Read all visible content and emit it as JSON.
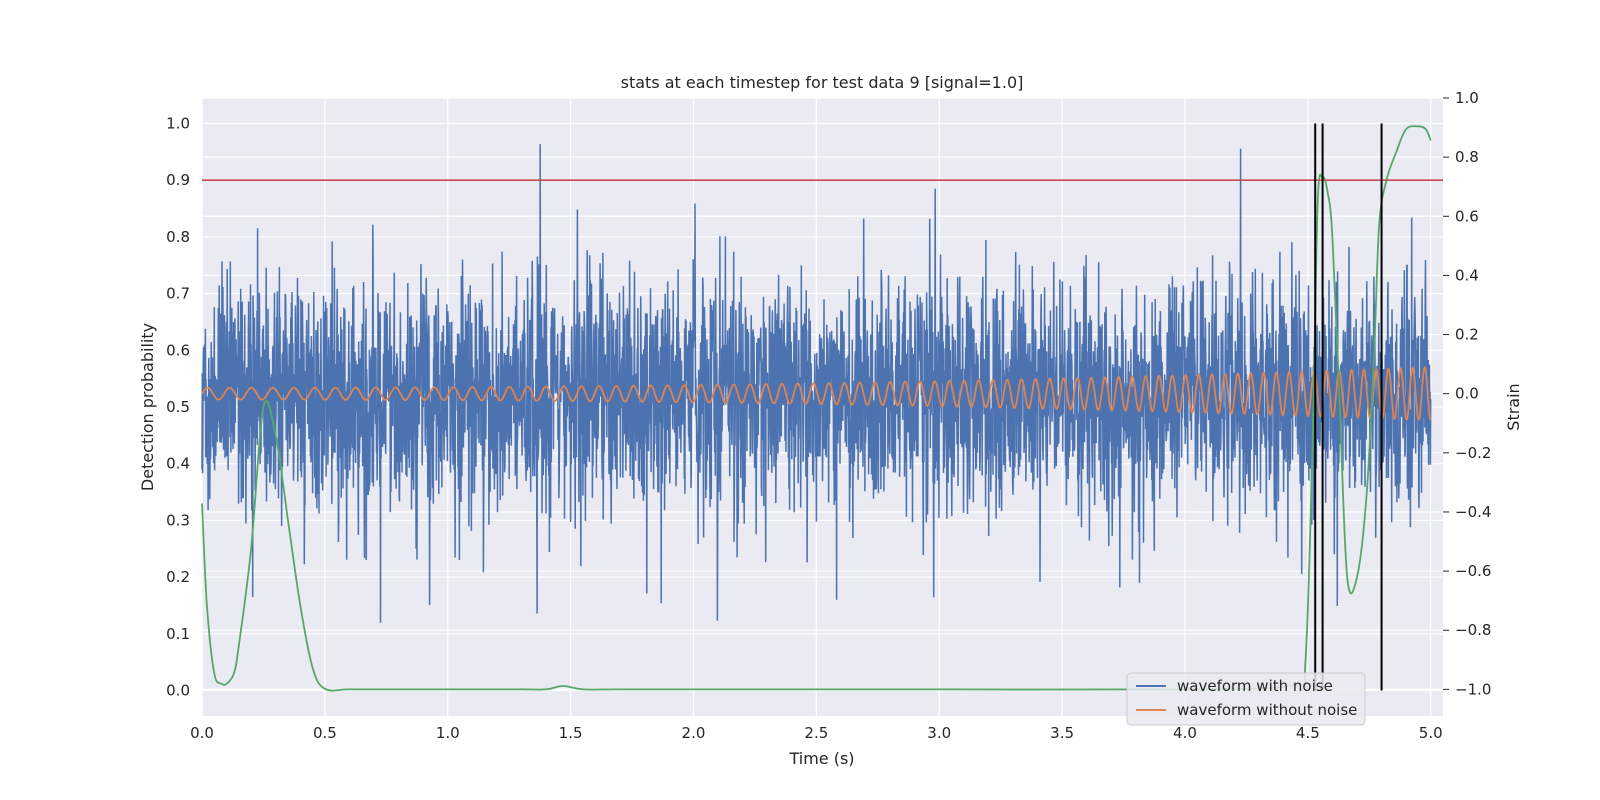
{
  "chart_data": {
    "type": "line",
    "title": "stats at each timestep for test data 9 [signal=1.0]",
    "xlabel": "Time (s)",
    "ylabel": "Detection probability",
    "y2label": "Strain",
    "xlim": [
      0.0,
      5.05
    ],
    "ylim": [
      -0.045,
      1.045
    ],
    "y2lim": [
      -1.09,
      1.0
    ],
    "xticks": [
      0.0,
      0.5,
      1.0,
      1.5,
      2.0,
      2.5,
      3.0,
      3.5,
      4.0,
      4.5,
      5.0
    ],
    "xtick_labels": [
      "0.0",
      "0.5",
      "1.0",
      "1.5",
      "2.0",
      "2.5",
      "3.0",
      "3.5",
      "4.0",
      "4.5",
      "5.0"
    ],
    "yticks": [
      0.0,
      0.1,
      0.2,
      0.3,
      0.4,
      0.5,
      0.6,
      0.7,
      0.8,
      0.9,
      1.0
    ],
    "ytick_labels": [
      "0.0",
      "0.1",
      "0.2",
      "0.3",
      "0.4",
      "0.5",
      "0.6",
      "0.7",
      "0.8",
      "0.9",
      "1.0"
    ],
    "y2ticks": [
      -1.0,
      -0.8,
      -0.6,
      -0.4,
      -0.2,
      0.0,
      0.2,
      0.4,
      0.6,
      0.8,
      1.0
    ],
    "y2tick_labels": [
      "−1.0",
      "−0.8",
      "−0.6",
      "−0.4",
      "−0.2",
      "0.0",
      "0.2",
      "0.4",
      "0.6",
      "0.8",
      "1.0"
    ],
    "grid": true,
    "legend_position": "lower-right",
    "threshold": {
      "value": 0.9,
      "color": "#c44e52"
    },
    "detection_markers": {
      "x": [
        4.53,
        4.56,
        4.8
      ],
      "y_range": [
        0.0,
        1.0
      ],
      "color": "#000000"
    },
    "series": [
      {
        "name": "waveform with noise",
        "axis": "right",
        "color": "#4c72b0",
        "kind": "noisy_waveform",
        "x_range": [
          0.0,
          5.0
        ],
        "y_range": [
          -0.9,
          0.9
        ]
      },
      {
        "name": "waveform without noise",
        "axis": "right",
        "color": "#dd8452",
        "kind": "chirp",
        "x_range": [
          0.0,
          5.0
        ],
        "amplitude_start": 0.02,
        "amplitude_end": 0.09,
        "center": 0.0
      },
      {
        "axis": "left",
        "color": "#55a868",
        "kind": "probability",
        "x": [
          0.0,
          0.02,
          0.05,
          0.08,
          0.1,
          0.13,
          0.15,
          0.2,
          0.25,
          0.3,
          0.35,
          0.4,
          0.45,
          0.5,
          0.6,
          0.8,
          1.0,
          1.3,
          1.4,
          1.47,
          1.55,
          1.7,
          2.0,
          3.0,
          4.0,
          4.45,
          4.49,
          4.52,
          4.54,
          4.56,
          4.58,
          4.6,
          4.63,
          4.66,
          4.7,
          4.74,
          4.77,
          4.79,
          4.82,
          4.86,
          4.9,
          4.95,
          4.98,
          5.0
        ],
        "y": [
          0.33,
          0.15,
          0.03,
          0.012,
          0.012,
          0.03,
          0.08,
          0.25,
          0.5,
          0.45,
          0.3,
          0.15,
          0.04,
          0.003,
          0.002,
          0.002,
          0.002,
          0.002,
          0.002,
          0.008,
          0.002,
          0.002,
          0.002,
          0.002,
          0.002,
          0.01,
          0.05,
          0.45,
          0.86,
          0.905,
          0.88,
          0.8,
          0.5,
          0.2,
          0.2,
          0.35,
          0.6,
          0.82,
          0.9,
          0.95,
          0.99,
          0.995,
          0.99,
          0.97
        ]
      }
    ]
  }
}
